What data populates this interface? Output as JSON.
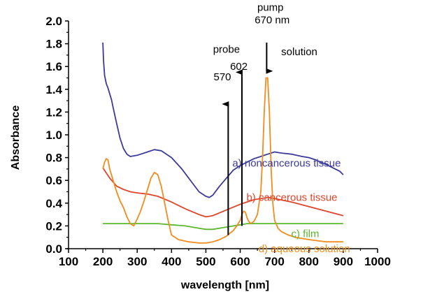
{
  "chart_data": {
    "type": "line",
    "xlabel": "wavelength [nm]",
    "ylabel": "Absorbance",
    "xlim": [
      100,
      1000
    ],
    "ylim": [
      0,
      2.0
    ],
    "x_ticks": [
      "100",
      "200",
      "300",
      "400",
      "500",
      "600",
      "700",
      "800",
      "900",
      "1000"
    ],
    "y_ticks": [
      "0.0",
      "0.2",
      "0.4",
      "0.6",
      "0.8",
      "1.0",
      "1.2",
      "1.4",
      "1.6",
      "1.8",
      "2.0"
    ],
    "grid": false,
    "series": [
      {
        "name": "a) noncancerous tissue",
        "color": "#3b3a9a",
        "x": [
          200,
          202,
          205,
          210,
          215,
          220,
          225,
          230,
          240,
          250,
          260,
          270,
          280,
          300,
          330,
          350,
          370,
          400,
          430,
          460,
          480,
          500,
          510,
          520,
          540,
          560,
          580,
          600,
          620,
          640,
          660,
          680,
          700,
          720,
          750,
          780,
          800,
          820,
          850,
          870,
          890,
          900
        ],
        "y": [
          1.81,
          1.65,
          1.52,
          1.45,
          1.41,
          1.36,
          1.31,
          1.24,
          1.1,
          0.97,
          0.88,
          0.83,
          0.81,
          0.82,
          0.85,
          0.87,
          0.86,
          0.8,
          0.7,
          0.58,
          0.5,
          0.46,
          0.45,
          0.47,
          0.55,
          0.62,
          0.69,
          0.73,
          0.76,
          0.79,
          0.81,
          0.83,
          0.85,
          0.84,
          0.83,
          0.81,
          0.8,
          0.78,
          0.74,
          0.71,
          0.68,
          0.65
        ]
      },
      {
        "name": "b) cancerous tissue",
        "color": "#e0442a",
        "x": [
          200,
          220,
          240,
          260,
          280,
          300,
          330,
          360,
          400,
          440,
          480,
          500,
          520,
          560,
          600,
          640,
          680,
          700,
          750,
          800,
          850,
          900
        ],
        "y": [
          0.71,
          0.62,
          0.55,
          0.52,
          0.5,
          0.49,
          0.48,
          0.46,
          0.41,
          0.35,
          0.3,
          0.28,
          0.29,
          0.34,
          0.39,
          0.43,
          0.45,
          0.44,
          0.41,
          0.37,
          0.33,
          0.29
        ]
      },
      {
        "name": "c) film",
        "color": "#5cb82e",
        "x": [
          200,
          240,
          280,
          320,
          360,
          400,
          440,
          480,
          500,
          520,
          560,
          600,
          620,
          640,
          680,
          720,
          780,
          840,
          880,
          900
        ],
        "y": [
          0.22,
          0.22,
          0.22,
          0.22,
          0.22,
          0.21,
          0.2,
          0.18,
          0.17,
          0.17,
          0.19,
          0.21,
          0.22,
          0.22,
          0.22,
          0.22,
          0.22,
          0.22,
          0.22,
          0.22
        ]
      },
      {
        "name": "d) aqueous solution",
        "color": "#f28c1c",
        "x": [
          200,
          205,
          210,
          215,
          220,
          230,
          240,
          250,
          260,
          270,
          280,
          290,
          300,
          310,
          320,
          330,
          340,
          350,
          360,
          370,
          380,
          390,
          400,
          420,
          450,
          480,
          500,
          520,
          540,
          560,
          580,
          590,
          600,
          605,
          610,
          615,
          620,
          625,
          630,
          640,
          650,
          660,
          665,
          670,
          675,
          680,
          685,
          690,
          695,
          700,
          710,
          720,
          740,
          760,
          800,
          850,
          900
        ],
        "y": [
          0.7,
          0.76,
          0.79,
          0.78,
          0.7,
          0.6,
          0.5,
          0.42,
          0.36,
          0.28,
          0.22,
          0.2,
          0.26,
          0.33,
          0.42,
          0.52,
          0.62,
          0.67,
          0.65,
          0.55,
          0.4,
          0.25,
          0.12,
          0.08,
          0.06,
          0.05,
          0.05,
          0.06,
          0.08,
          0.11,
          0.16,
          0.2,
          0.25,
          0.3,
          0.33,
          0.32,
          0.27,
          0.24,
          0.22,
          0.24,
          0.3,
          0.5,
          0.8,
          1.2,
          1.5,
          1.5,
          1.2,
          0.7,
          0.4,
          0.25,
          0.18,
          0.15,
          0.12,
          0.1,
          0.08,
          0.06,
          0.06
        ]
      }
    ],
    "arrows": [
      {
        "x": 565,
        "y_from": 0.12,
        "y_to": 1.27
      },
      {
        "x": 605,
        "y_from": 0.2,
        "y_to": 1.55
      },
      {
        "x": 677,
        "y_from": 1.81,
        "y_to": 1.56
      }
    ],
    "annotations": [
      {
        "text": "pump",
        "x": 688,
        "y": 2.09
      },
      {
        "text": "670 nm",
        "x": 693,
        "y": 1.98
      },
      {
        "text": "probe",
        "x": 560,
        "y": 1.72
      },
      {
        "text": "602",
        "x": 596,
        "y": 1.57
      },
      {
        "text": "570",
        "x": 548,
        "y": 1.48
      },
      {
        "text": "solution",
        "x": 772,
        "y": 1.7
      }
    ],
    "series_labels": [
      {
        "text": "a) noncancerous tissue",
        "x": 893,
        "y": 0.72
      },
      {
        "text": "b) cancerous tissue",
        "x": 883,
        "y": 0.42
      },
      {
        "text": "c) film",
        "x": 830,
        "y": 0.1
      },
      {
        "text": "d) aqueous solution",
        "x": 920,
        "y": -0.03
      }
    ]
  }
}
